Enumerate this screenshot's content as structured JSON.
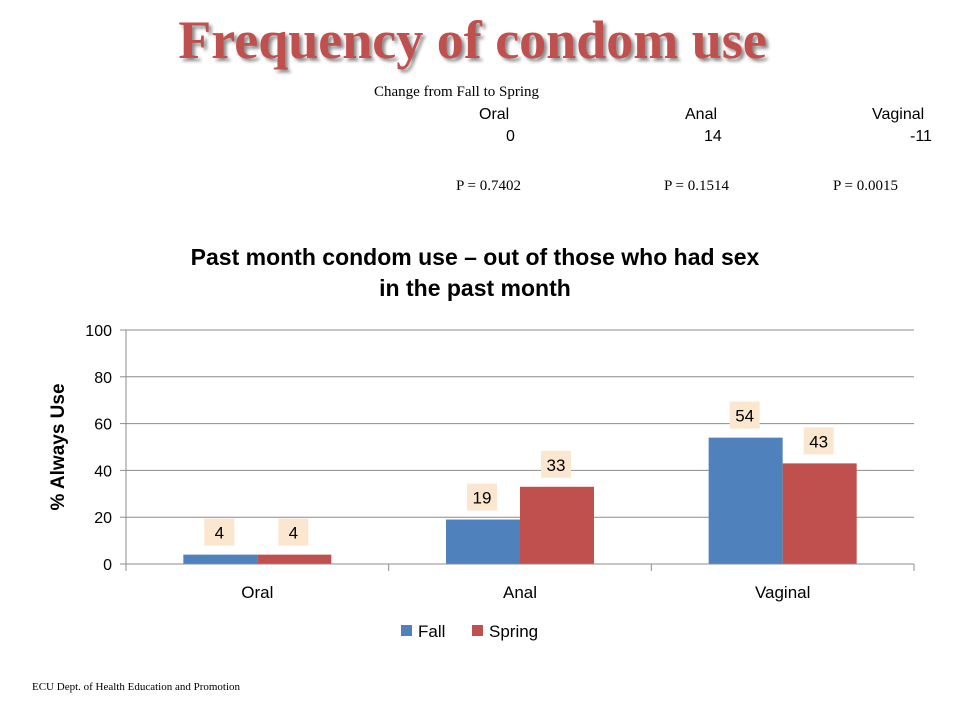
{
  "slide": {
    "title": "Frequency of condom use",
    "footer": "ECU Dept. of Health Education and Promotion"
  },
  "change_table": {
    "title": "Change  from Fall to Spring",
    "columns": [
      "Oral",
      "Anal",
      "Vaginal"
    ],
    "changes": [
      "0",
      "14",
      "-11"
    ],
    "p_values": [
      "P = 0.7402",
      "P = 0.1514",
      "P = 0.0015"
    ]
  },
  "chart_data": {
    "type": "bar",
    "title": "Past month condom use – out of those who had sex in the past month",
    "title_lines": [
      "Past month condom use – out of those who had sex",
      "in the past month"
    ],
    "xlabel": "",
    "ylabel": "% Always Use",
    "categories": [
      "Oral",
      "Anal",
      "Vaginal"
    ],
    "series": [
      {
        "name": "Fall",
        "values": [
          4,
          19,
          54
        ],
        "color": "#4f81bd"
      },
      {
        "name": "Spring",
        "values": [
          4,
          33,
          43
        ],
        "color": "#c0504d"
      }
    ],
    "ylim": [
      0,
      100
    ],
    "yticks": [
      0,
      20,
      40,
      60,
      80,
      100
    ],
    "grid": true,
    "legend": "bottom",
    "data_label_bg": "#fbe7cf"
  }
}
